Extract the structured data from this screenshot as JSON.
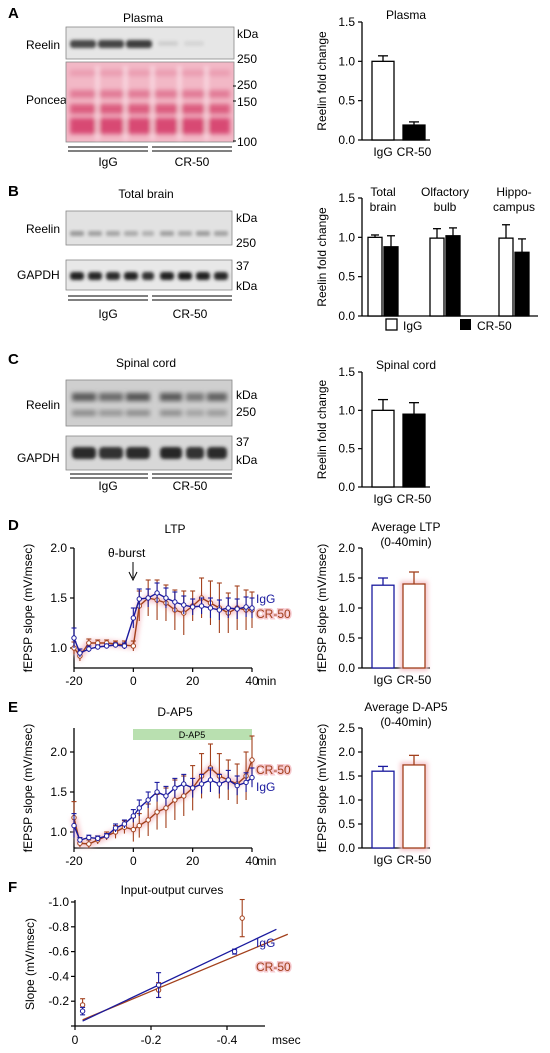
{
  "panels": {
    "A": {
      "letter": "A",
      "blot_title": "Plasma",
      "rows": [
        "Reelin",
        "Ponceau"
      ],
      "markers": [
        "kDa",
        "250",
        "250",
        "150",
        "100"
      ],
      "groups": [
        "IgG",
        "CR-50"
      ]
    },
    "B": {
      "letter": "B",
      "blot_title": "Total brain",
      "rows": [
        "Reelin",
        "GAPDH"
      ],
      "markers": [
        "kDa",
        "250",
        "37",
        "kDa"
      ],
      "groups": [
        "IgG",
        "CR-50"
      ],
      "chart_legend": [
        "IgG",
        "CR-50"
      ]
    },
    "C": {
      "letter": "C",
      "blot_title": "Spinal cord",
      "rows": [
        "Reelin",
        "GAPDH"
      ],
      "markers": [
        "kDa",
        "250",
        "37",
        "kDa"
      ],
      "groups": [
        "IgG",
        "CR-50"
      ]
    },
    "D": {
      "letter": "D",
      "theta_burst": "θ-burst"
    },
    "E": {
      "letter": "E",
      "dap5_bar": "D-AP5"
    },
    "F": {
      "letter": "F"
    }
  },
  "colors": {
    "igg": "#1a1a9e",
    "cr50": "#a2401c",
    "cr50_halo": "#f6c9cf",
    "dap5_bar": "#b9e0b0",
    "ponceau": "#e06a86"
  },
  "chart_data": [
    {
      "id": "A_bar",
      "type": "bar",
      "title": "Plasma",
      "ylabel": "Reelin fold change",
      "categories": [
        "IgG",
        "CR-50"
      ],
      "values": [
        1.0,
        0.19
      ],
      "errors": [
        0.07,
        0.04
      ],
      "fills": [
        "white",
        "black"
      ],
      "ylim": [
        0,
        1.5
      ],
      "yticks": [
        "0.0",
        "0.5",
        "1.0",
        "1.5"
      ]
    },
    {
      "id": "B_bar",
      "type": "bar",
      "ylabel": "Reelin fold change",
      "groups": [
        "Total\nbrain",
        "Olfactory\nbulb",
        "Hippo-\ncampus"
      ],
      "series": [
        {
          "name": "IgG",
          "values": [
            1.0,
            0.99,
            0.99
          ],
          "errors": [
            0.03,
            0.12,
            0.17
          ]
        },
        {
          "name": "CR-50",
          "values": [
            0.88,
            1.02,
            0.81
          ],
          "errors": [
            0.14,
            0.1,
            0.17
          ]
        }
      ],
      "ylim": [
        0,
        1.5
      ],
      "yticks": [
        "0.0",
        "0.5",
        "1.0",
        "1.5"
      ]
    },
    {
      "id": "C_bar",
      "type": "bar",
      "title": "Spinal cord",
      "ylabel": "Reelin fold change",
      "categories": [
        "IgG",
        "CR-50"
      ],
      "values": [
        1.0,
        0.95
      ],
      "errors": [
        0.14,
        0.15
      ],
      "fills": [
        "white",
        "black"
      ],
      "ylim": [
        0,
        1.5
      ],
      "yticks": [
        "0.0",
        "0.5",
        "1.0",
        "1.5"
      ]
    },
    {
      "id": "D_line",
      "type": "line",
      "title": "LTP",
      "ylabel": "fEPSP slope (mV/msec)",
      "xunit": "min",
      "xlim": [
        -20,
        40
      ],
      "ylim": [
        0.8,
        2.0
      ],
      "xticks": [
        "-20",
        "0",
        "20",
        "40"
      ],
      "yticks": [
        "1.0",
        "1.5",
        "2.0"
      ],
      "x": [
        -20,
        -18,
        -15,
        -12,
        -9,
        -6,
        -3,
        0,
        2,
        5,
        8,
        11,
        14,
        17,
        20,
        23,
        26,
        29,
        32,
        35,
        38,
        40
      ],
      "series": [
        {
          "name": "IgG",
          "values": [
            1.1,
            0.95,
            0.99,
            1.01,
            1.02,
            1.03,
            1.02,
            1.3,
            1.49,
            1.5,
            1.55,
            1.5,
            1.46,
            1.43,
            1.41,
            1.42,
            1.4,
            1.38,
            1.4,
            1.39,
            1.41,
            1.4
          ],
          "errors": [
            0.1,
            0.04,
            0.03,
            0.02,
            0.02,
            0.02,
            0.03,
            0.1,
            0.1,
            0.09,
            0.1,
            0.1,
            0.1,
            0.09,
            0.08,
            0.08,
            0.1,
            0.1,
            0.1,
            0.1,
            0.1,
            0.1
          ]
        },
        {
          "name": "CR-50",
          "values": [
            1.0,
            0.92,
            1.05,
            1.05,
            1.05,
            1.04,
            1.03,
            1.02,
            1.42,
            1.5,
            1.48,
            1.45,
            1.38,
            1.35,
            1.42,
            1.5,
            1.45,
            1.4,
            1.35,
            1.4,
            1.38,
            1.38
          ],
          "errors": [
            0.06,
            0.05,
            0.04,
            0.03,
            0.03,
            0.03,
            0.04,
            0.05,
            0.15,
            0.18,
            0.2,
            0.18,
            0.2,
            0.22,
            0.15,
            0.2,
            0.22,
            0.25,
            0.2,
            0.22,
            0.2,
            0.18
          ]
        }
      ]
    },
    {
      "id": "D_bar",
      "type": "bar",
      "title": "Average LTP\n(0-40min)",
      "ylabel": "fEPSP slope (mV/msec)",
      "categories": [
        "IgG",
        "CR-50"
      ],
      "values": [
        1.38,
        1.4
      ],
      "errors": [
        0.12,
        0.2
      ],
      "ylim": [
        0,
        2.0
      ],
      "yticks": [
        "0.0",
        "0.5",
        "1.0",
        "1.5",
        "2.0"
      ]
    },
    {
      "id": "E_line",
      "type": "line",
      "title": "D-AP5",
      "ylabel": "fEPSP slope (mV/msec)",
      "xunit": "min",
      "xlim": [
        -20,
        40
      ],
      "ylim": [
        0.8,
        2.3
      ],
      "xticks": [
        "-20",
        "0",
        "20",
        "40"
      ],
      "yticks": [
        "1.0",
        "1.5",
        "2.0"
      ],
      "x": [
        -20,
        -18,
        -15,
        -12,
        -9,
        -6,
        -3,
        0,
        2,
        5,
        8,
        11,
        14,
        17,
        20,
        23,
        26,
        29,
        32,
        35,
        38,
        40
      ],
      "series": [
        {
          "name": "IgG",
          "values": [
            1.08,
            0.9,
            0.93,
            0.92,
            0.95,
            1.05,
            1.1,
            1.2,
            1.3,
            1.4,
            1.5,
            1.45,
            1.55,
            1.6,
            1.55,
            1.6,
            1.65,
            1.6,
            1.65,
            1.58,
            1.62,
            1.68
          ],
          "errors": [
            0.15,
            0.03,
            0.03,
            0.03,
            0.03,
            0.05,
            0.05,
            0.08,
            0.1,
            0.1,
            0.12,
            0.12,
            0.12,
            0.12,
            0.12,
            0.12,
            0.15,
            0.12,
            0.12,
            0.12,
            0.12,
            0.12
          ]
        },
        {
          "name": "CR-50",
          "values": [
            1.18,
            0.86,
            0.85,
            0.9,
            0.95,
            1.0,
            1.06,
            1.03,
            1.08,
            1.15,
            1.25,
            1.3,
            1.4,
            1.45,
            1.55,
            1.7,
            1.8,
            1.7,
            1.65,
            1.6,
            1.7,
            1.9
          ],
          "errors": [
            0.2,
            0.05,
            0.05,
            0.05,
            0.05,
            0.08,
            0.08,
            0.15,
            0.15,
            0.2,
            0.22,
            0.25,
            0.25,
            0.25,
            0.28,
            0.28,
            0.3,
            0.28,
            0.25,
            0.25,
            0.3,
            0.3
          ]
        }
      ]
    },
    {
      "id": "E_bar",
      "type": "bar",
      "title": "Average D-AP5\n(0-40min)",
      "ylabel": "fEPSP slope (mV/msec)",
      "categories": [
        "IgG",
        "CR-50"
      ],
      "values": [
        1.6,
        1.73
      ],
      "errors": [
        0.1,
        0.2
      ],
      "ylim": [
        0,
        2.5
      ],
      "yticks": [
        "0.0",
        "0.5",
        "1.0",
        "1.5",
        "2.0",
        "2.5"
      ]
    },
    {
      "id": "F_scatter",
      "type": "scatter",
      "title": "Input-output curves",
      "ylabel": "Slope (mV/msec)",
      "xunit": "msec",
      "xlim": [
        0,
        -0.5
      ],
      "ylim": [
        0,
        -1.0
      ],
      "xticks": [
        "0",
        "-0.2",
        "-0.4"
      ],
      "yticks": [
        "-1.0",
        "-0.8",
        "-0.6",
        "-0.4",
        "-0.2",
        "0"
      ],
      "series": [
        {
          "name": "IgG",
          "x": [
            -0.02,
            -0.22,
            -0.42
          ],
          "values": [
            -0.12,
            -0.33,
            -0.6
          ],
          "errors": [
            0.03,
            0.1,
            0.02
          ],
          "fit": {
            "x": [
              -0.02,
              -0.53
            ],
            "values": [
              -0.04,
              -0.78
            ]
          }
        },
        {
          "name": "CR-50",
          "x": [
            -0.02,
            -0.22,
            -0.44
          ],
          "values": [
            -0.17,
            -0.29,
            -0.87
          ],
          "errors": [
            0.05,
            0.06,
            0.15
          ],
          "fit": {
            "x": [
              -0.02,
              -0.56
            ],
            "values": [
              -0.05,
              -0.74
            ]
          }
        }
      ]
    }
  ]
}
